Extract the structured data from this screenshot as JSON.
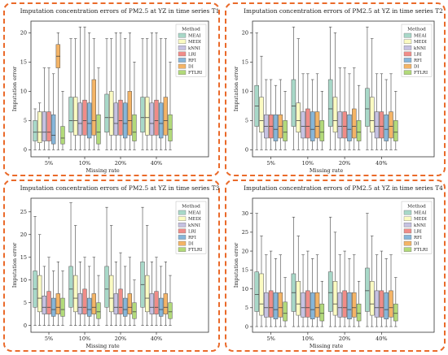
{
  "chart_data": [
    {
      "type": "box",
      "title": "Imputation concentration errors of PM2.5 at YZ in time series T1",
      "xlabel": "Missing rate",
      "ylabel": "Imputation error",
      "categories": [
        "5%",
        "10%",
        "20%",
        "40%"
      ],
      "yticks": [
        0,
        5,
        10,
        15,
        20
      ],
      "ylim": [
        -1.2,
        22
      ],
      "legend_title": "Method",
      "legend_position": "top-right",
      "series": [
        {
          "name": "MEAI",
          "color": "#a8d8c8",
          "boxes": [
            [
              0,
              1.5,
              3,
              5,
              7
            ],
            [
              0,
              3,
              5,
              9,
              19
            ],
            [
              0,
              3,
              5.5,
              9.5,
              19
            ],
            [
              0,
              3,
              5.5,
              9,
              19
            ]
          ]
        },
        {
          "name": "MEDI",
          "color": "#fbfbc2",
          "boxes": [
            [
              0,
              1.2,
              3,
              6.5,
              8
            ],
            [
              0,
              2.5,
              5,
              9,
              19
            ],
            [
              0,
              2.5,
              5.5,
              10,
              19
            ],
            [
              0,
              2.5,
              5.5,
              9,
              19
            ]
          ]
        },
        {
          "name": "kNNI",
          "color": "#c6c2e2",
          "boxes": [
            [
              0,
              1.5,
              3,
              6.5,
              14
            ],
            [
              0,
              2.5,
              4.5,
              8,
              21
            ],
            [
              0,
              2.5,
              4.5,
              8,
              20
            ],
            [
              0,
              2.5,
              4.5,
              8,
              20
            ]
          ]
        },
        {
          "name": "LRI",
          "color": "#f08c88",
          "boxes": [
            [
              0,
              1.5,
              3,
              6.5,
              14
            ],
            [
              0,
              2.5,
              5,
              8.5,
              21
            ],
            [
              0,
              2.5,
              5,
              8.5,
              20
            ],
            [
              0,
              2.5,
              5,
              8.5,
              20
            ]
          ]
        },
        {
          "name": "RFI",
          "color": "#86b6da",
          "boxes": [
            [
              0,
              1,
              2.5,
              6,
              13
            ],
            [
              0,
              2,
              4.5,
              8,
              20
            ],
            [
              0,
              2,
              4.5,
              8,
              19
            ],
            [
              0,
              2,
              4.5,
              8,
              19
            ]
          ]
        },
        {
          "name": "DI",
          "color": "#f4b466",
          "boxes": [
            [
              0,
              14,
              16,
              18,
              20
            ],
            [
              0,
              2.5,
              5,
              12,
              19
            ],
            [
              0,
              2.5,
              5,
              10,
              20
            ],
            [
              0,
              2.5,
              5,
              9,
              19
            ]
          ]
        },
        {
          "name": "FTLRI",
          "color": "#b2da7a",
          "boxes": [
            [
              0,
              1,
              2,
              4,
              10
            ],
            [
              0,
              1,
              3,
              6,
              14
            ],
            [
              0,
              1.5,
              3,
              6,
              15
            ],
            [
              0,
              1.5,
              3.5,
              6,
              15
            ]
          ]
        }
      ]
    },
    {
      "type": "box",
      "title": "Imputation concentration errors of PM2.5 at YZ in time series T2",
      "xlabel": "Missing rate",
      "ylabel": "Imputation error",
      "categories": [
        "5%",
        "10%",
        "20%",
        "40%"
      ],
      "yticks": [
        0,
        5,
        10,
        15,
        20
      ],
      "ylim": [
        -1.2,
        22
      ],
      "legend_title": "Method",
      "legend_position": "top-right",
      "series": [
        {
          "name": "MEAI",
          "color": "#a8d8c8",
          "boxes": [
            [
              0,
              4,
              7.5,
              11,
              20
            ],
            [
              0,
              4,
              7.5,
              12,
              21
            ],
            [
              0,
              4,
              7,
              12,
              21
            ],
            [
              0,
              4,
              7,
              10.5,
              21
            ]
          ]
        },
        {
          "name": "MEDI",
          "color": "#fbfbc2",
          "boxes": [
            [
              0,
              3,
              5,
              9,
              16
            ],
            [
              0,
              3,
              5,
              8,
              19
            ],
            [
              0,
              3,
              5,
              9,
              20
            ],
            [
              0,
              3,
              5,
              9,
              19
            ]
          ]
        },
        {
          "name": "kNNI",
          "color": "#c6c2e2",
          "boxes": [
            [
              0,
              2,
              4,
              6,
              12
            ],
            [
              0,
              2,
              4,
              6.5,
              13
            ],
            [
              0,
              2,
              4,
              6.5,
              14
            ],
            [
              0,
              2,
              4,
              6.5,
              13
            ]
          ]
        },
        {
          "name": "LRI",
          "color": "#f08c88",
          "boxes": [
            [
              0,
              2,
              4,
              6,
              12
            ],
            [
              0,
              2,
              4,
              7,
              13
            ],
            [
              0,
              2,
              4,
              6.5,
              14
            ],
            [
              0,
              2,
              4,
              6.5,
              13
            ]
          ]
        },
        {
          "name": "RFI",
          "color": "#86b6da",
          "boxes": [
            [
              0,
              1.5,
              3.5,
              6,
              11
            ],
            [
              0,
              1.5,
              3.5,
              6.5,
              12
            ],
            [
              0,
              1.5,
              3.5,
              6,
              13
            ],
            [
              0,
              1.5,
              3.5,
              6,
              12
            ]
          ]
        },
        {
          "name": "DI",
          "color": "#f4b466",
          "boxes": [
            [
              0,
              2,
              4,
              6,
              12
            ],
            [
              0,
              2,
              4,
              6.5,
              13
            ],
            [
              0,
              2,
              4,
              7,
              14
            ],
            [
              0,
              2,
              4,
              6.5,
              13
            ]
          ]
        },
        {
          "name": "FTLRI",
          "color": "#b2da7a",
          "boxes": [
            [
              0,
              1.5,
              3,
              5,
              10
            ],
            [
              0,
              1.5,
              3,
              5,
              10
            ],
            [
              0,
              1.5,
              3,
              5,
              11
            ],
            [
              0,
              1.5,
              3,
              5,
              10
            ]
          ]
        }
      ]
    },
    {
      "type": "box",
      "title": "Imputation concentration errors of PM2.5 at YZ in time series T3",
      "xlabel": "Missing rate",
      "ylabel": "Imputation error",
      "categories": [
        "5%",
        "10%",
        "20%",
        "40%"
      ],
      "yticks": [
        0,
        5,
        10,
        15,
        20,
        25
      ],
      "ylim": [
        -1.5,
        28
      ],
      "legend_title": "Method",
      "legend_position": "top-right",
      "series": [
        {
          "name": "MEAI",
          "color": "#a8d8c8",
          "boxes": [
            [
              0,
              4,
              8,
              12,
              24
            ],
            [
              0,
              4,
              8,
              13,
              27
            ],
            [
              0,
              4,
              8,
              13,
              26
            ],
            [
              0,
              4,
              9,
              14,
              26
            ]
          ]
        },
        {
          "name": "MEDI",
          "color": "#fbfbc2",
          "boxes": [
            [
              0,
              3,
              6,
              11,
              20
            ],
            [
              0,
              3,
              6,
              11,
              22
            ],
            [
              0,
              3,
              6,
              11,
              22
            ],
            [
              0,
              3,
              6,
              11,
              22
            ]
          ]
        },
        {
          "name": "kNNI",
          "color": "#c6c2e2",
          "boxes": [
            [
              0,
              2.5,
              4,
              6.5,
              13
            ],
            [
              0,
              2.5,
              4,
              7,
              14
            ],
            [
              0,
              2.5,
              4,
              7,
              14
            ],
            [
              0,
              2.5,
              4,
              7,
              14
            ]
          ]
        },
        {
          "name": "LRI",
          "color": "#f08c88",
          "boxes": [
            [
              0,
              2.5,
              4,
              7.5,
              15
            ],
            [
              0,
              2.5,
              4,
              8,
              15
            ],
            [
              0,
              2.5,
              4,
              8,
              16
            ],
            [
              0,
              2.5,
              4,
              7.5,
              15
            ]
          ]
        },
        {
          "name": "RFI",
          "color": "#86b6da",
          "boxes": [
            [
              0,
              2,
              3.5,
              6,
              12
            ],
            [
              0,
              2,
              3.5,
              6,
              13
            ],
            [
              0,
              2,
              3.5,
              6,
              13
            ],
            [
              0,
              2,
              3.5,
              6,
              13
            ]
          ]
        },
        {
          "name": "DI",
          "color": "#f4b466",
          "boxes": [
            [
              0,
              2.5,
              4,
              7,
              14
            ],
            [
              0,
              2.5,
              4,
              7,
              15
            ],
            [
              0,
              2.5,
              4,
              7,
              15
            ],
            [
              0,
              2.5,
              4,
              7,
              14
            ]
          ]
        },
        {
          "name": "FTLRI",
          "color": "#b2da7a",
          "boxes": [
            [
              0,
              2,
              3.5,
              6,
              12
            ],
            [
              0,
              1.5,
              3,
              5,
              11
            ],
            [
              0,
              1.5,
              3,
              5,
              10
            ],
            [
              0,
              1.5,
              3,
              5,
              11
            ]
          ]
        }
      ]
    },
    {
      "type": "box",
      "title": "Imputation concentration errors of PM2.5 at YZ in time series T4",
      "xlabel": "Missing rate",
      "ylabel": "Imputation error",
      "categories": [
        "5%",
        "10%",
        "20%",
        "40%"
      ],
      "yticks": [
        0,
        5,
        10,
        15,
        20,
        25,
        30
      ],
      "ylim": [
        -1.5,
        34
      ],
      "legend_title": "Method",
      "legend_position": "top-right",
      "series": [
        {
          "name": "MEAI",
          "color": "#a8d8c8",
          "boxes": [
            [
              0,
              4,
              8.5,
              14.5,
              30
            ],
            [
              0,
              4,
              9,
              14,
              29
            ],
            [
              0,
              4,
              9,
              14.5,
              29
            ],
            [
              0,
              4,
              9.5,
              15.5,
              30
            ]
          ]
        },
        {
          "name": "MEDI",
          "color": "#fbfbc2",
          "boxes": [
            [
              0,
              3,
              6,
              14,
              24
            ],
            [
              0,
              3,
              6,
              12,
              24
            ],
            [
              0,
              3,
              6,
              12,
              25
            ],
            [
              0,
              3,
              6,
              12,
              24
            ]
          ]
        },
        {
          "name": "kNNI",
          "color": "#c6c2e2",
          "boxes": [
            [
              0,
              2.5,
              5,
              9,
              19
            ],
            [
              0,
              2.5,
              5,
              9,
              19
            ],
            [
              0,
              2.5,
              5,
              9,
              19
            ],
            [
              0,
              2.5,
              5,
              9.5,
              19
            ]
          ]
        },
        {
          "name": "LRI",
          "color": "#f08c88",
          "boxes": [
            [
              0,
              2.5,
              5,
              9.5,
              20
            ],
            [
              0,
              2.5,
              5,
              9.5,
              20
            ],
            [
              0,
              2.5,
              5,
              9.5,
              20
            ],
            [
              0,
              2.5,
              5,
              9.5,
              20
            ]
          ]
        },
        {
          "name": "RFI",
          "color": "#86b6da",
          "boxes": [
            [
              0,
              2,
              4.5,
              9,
              18
            ],
            [
              0,
              2,
              4.5,
              9,
              18
            ],
            [
              0,
              2,
              4.5,
              9,
              18
            ],
            [
              0,
              2,
              4.5,
              9,
              18
            ]
          ]
        },
        {
          "name": "DI",
          "color": "#f4b466",
          "boxes": [
            [
              0,
              2.5,
              5,
              9,
              19
            ],
            [
              0,
              2.5,
              5,
              9,
              19
            ],
            [
              0,
              2.5,
              5,
              9,
              19
            ],
            [
              0,
              2.5,
              5,
              9.5,
              19
            ]
          ]
        },
        {
          "name": "FTLRI",
          "color": "#b2da7a",
          "boxes": [
            [
              0,
              1.5,
              3.5,
              6.5,
              13
            ],
            [
              0,
              1.5,
              3.5,
              6,
              12
            ],
            [
              0,
              1.5,
              3.5,
              6,
              12
            ],
            [
              0,
              1.5,
              3.5,
              6,
              13
            ]
          ]
        }
      ]
    }
  ],
  "frame_color": "#ea6a2a"
}
